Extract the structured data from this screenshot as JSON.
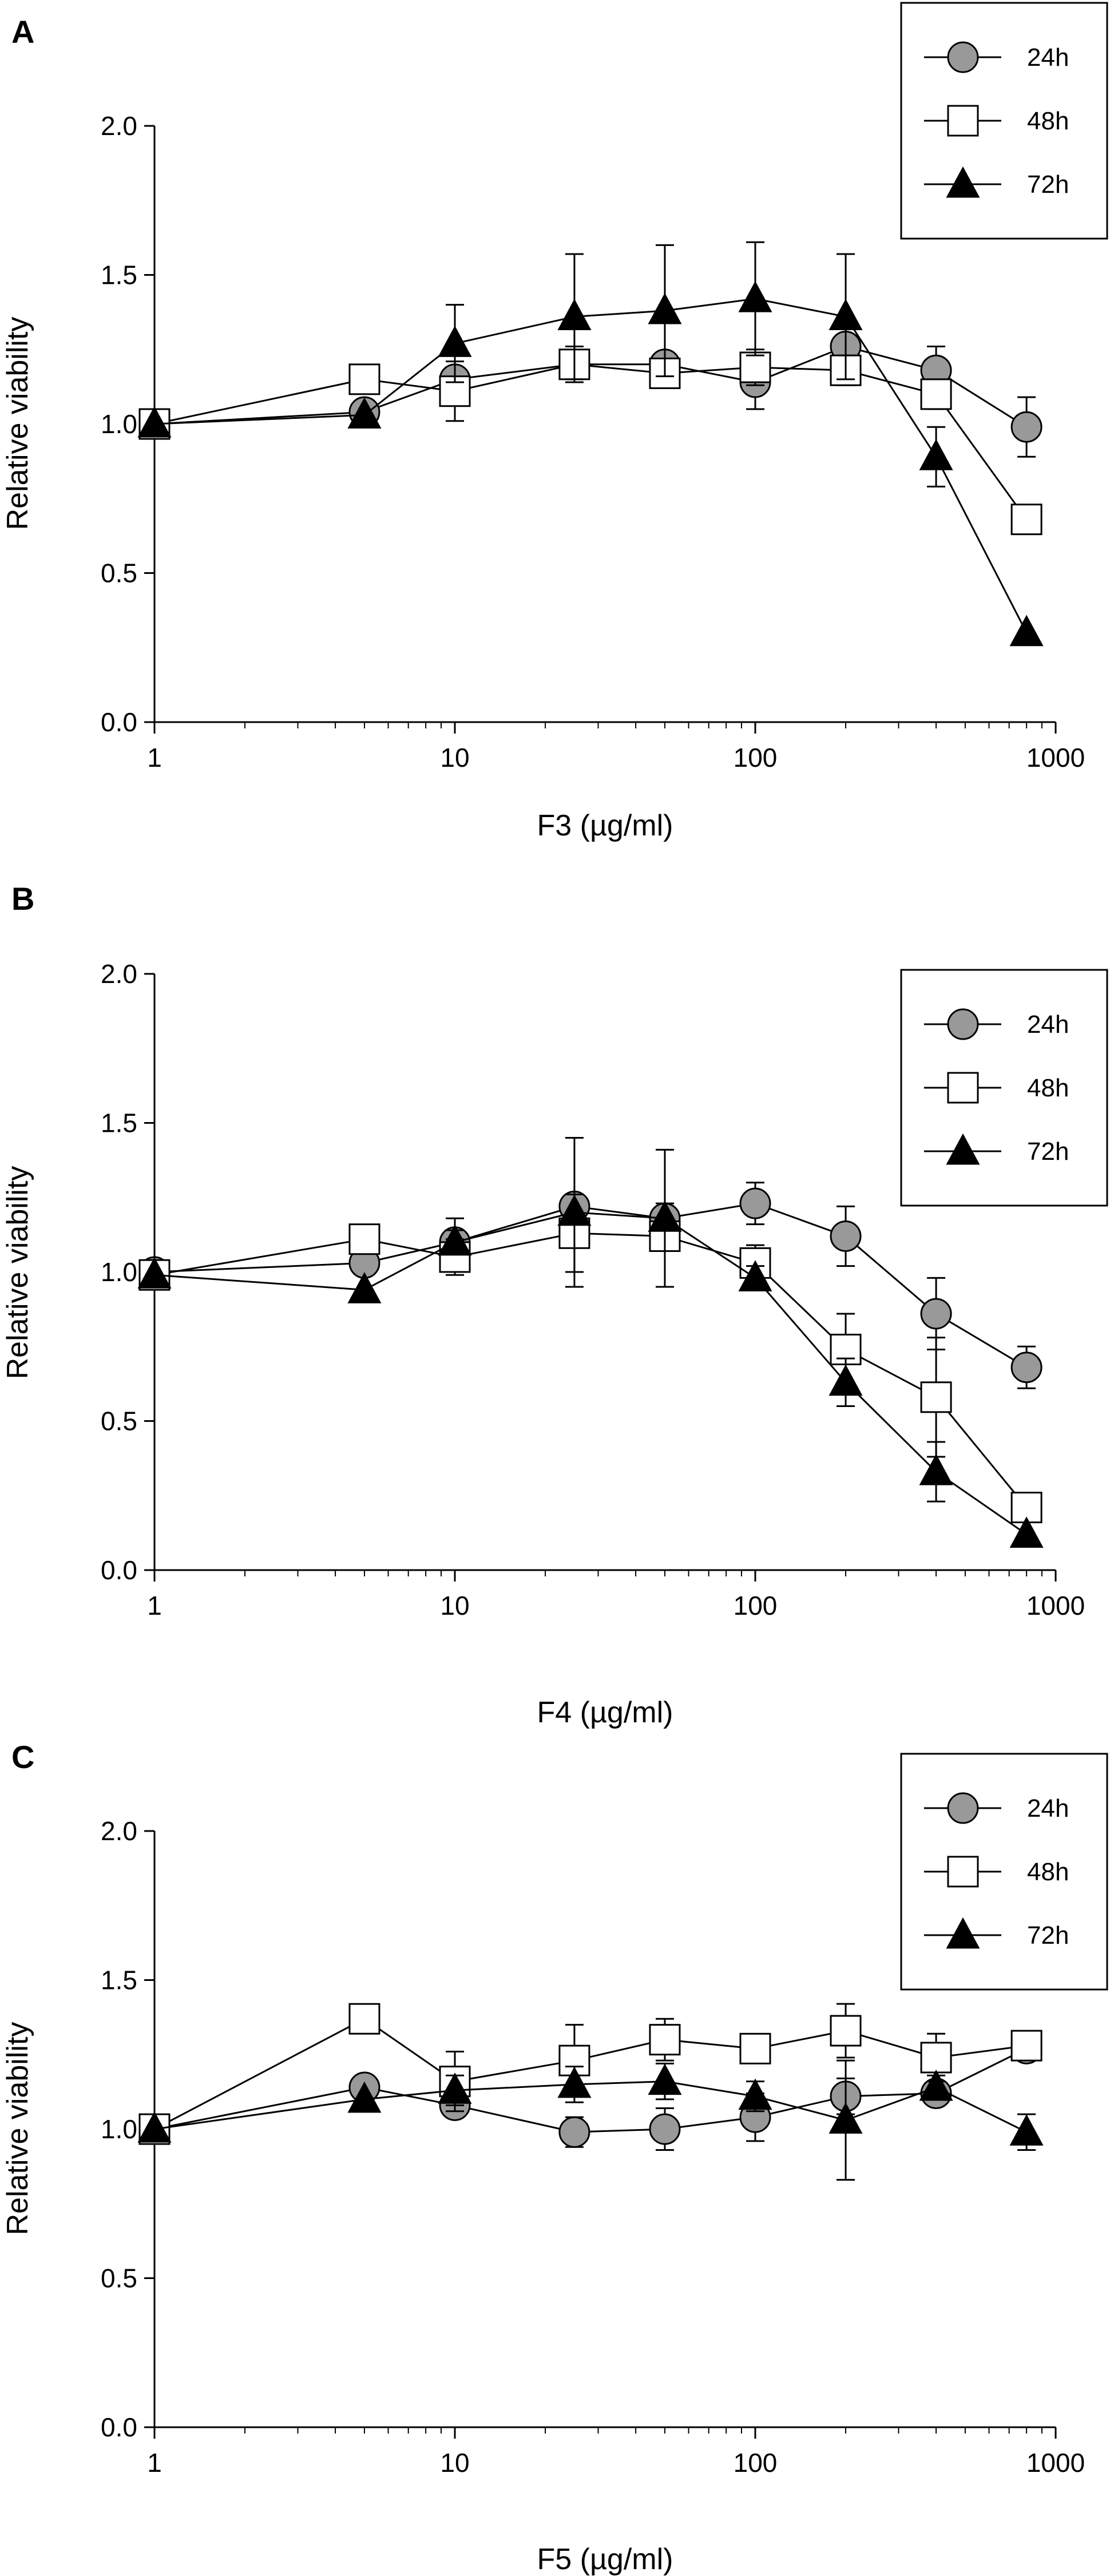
{
  "chart_data": [
    {
      "panel": "A",
      "type": "line",
      "xscale": "log",
      "xlim": [
        1,
        1000
      ],
      "xticks": [
        "1",
        "10",
        "100",
        "1000"
      ],
      "ylim": [
        0,
        2.0
      ],
      "yticks": [
        "0.0",
        "0.5",
        "1.0",
        "1.5",
        "2.0"
      ],
      "xlabel": "F3 (µg/ml)",
      "ylabel": "Relative viability",
      "legend_position": "top-right",
      "x": [
        1,
        5,
        10,
        25,
        50,
        100,
        200,
        400,
        800
      ],
      "series": [
        {
          "name": "24h",
          "marker": "circle-gray",
          "values": [
            1.0,
            1.04,
            1.15,
            1.2,
            1.2,
            1.14,
            1.26,
            1.18,
            0.99
          ],
          "errors": [
            0,
            0,
            0,
            0,
            0,
            0.09,
            0,
            0.08,
            0.1
          ]
        },
        {
          "name": "48h",
          "marker": "square-white",
          "values": [
            1.0,
            1.15,
            1.11,
            1.2,
            1.17,
            1.19,
            1.18,
            1.1,
            0.68
          ],
          "errors": [
            0,
            0,
            0.1,
            0.06,
            0.03,
            0.06,
            0.05,
            0.05,
            0
          ]
        },
        {
          "name": "72h",
          "marker": "triangle-black",
          "values": [
            1.0,
            1.03,
            1.27,
            1.36,
            1.38,
            1.42,
            1.36,
            0.89,
            0.3
          ],
          "errors": [
            0,
            0,
            0.13,
            0.21,
            0.22,
            0.19,
            0.21,
            0.1,
            0
          ]
        }
      ]
    },
    {
      "panel": "B",
      "type": "line",
      "xscale": "log",
      "xlim": [
        1,
        1000
      ],
      "xticks": [
        "1",
        "10",
        "100",
        "1000"
      ],
      "ylim": [
        0,
        2.0
      ],
      "yticks": [
        "0.0",
        "0.5",
        "1.0",
        "1.5",
        "2.0"
      ],
      "xlabel": "F4 (µg/ml)",
      "ylabel": "Relative viability",
      "legend_position": "top-right",
      "x": [
        1,
        5,
        10,
        25,
        50,
        100,
        200,
        400,
        800
      ],
      "series": [
        {
          "name": "24h",
          "marker": "circle-gray",
          "values": [
            1.0,
            1.03,
            1.1,
            1.22,
            1.18,
            1.23,
            1.12,
            0.86,
            0.68
          ],
          "errors": [
            0,
            0,
            0.08,
            0.03,
            0.05,
            0.07,
            0.1,
            0.12,
            0.07
          ]
        },
        {
          "name": "48h",
          "marker": "square-white",
          "values": [
            0.99,
            1.11,
            1.05,
            1.13,
            1.12,
            1.03,
            0.74,
            0.58,
            0.21
          ],
          "errors": [
            0,
            0,
            0.06,
            0.13,
            0.05,
            0.06,
            0.12,
            0.2,
            0
          ]
        },
        {
          "name": "72h",
          "marker": "triangle-black",
          "values": [
            0.99,
            0.94,
            1.1,
            1.2,
            1.18,
            0.98,
            0.63,
            0.33,
            0.12
          ],
          "errors": [
            0,
            0,
            0.04,
            0.25,
            0.23,
            0.04,
            0.08,
            0.1,
            0
          ]
        }
      ]
    },
    {
      "panel": "C",
      "type": "line",
      "xscale": "log",
      "xlim": [
        1,
        1000
      ],
      "xticks": [
        "1",
        "10",
        "100",
        "1000"
      ],
      "ylim": [
        0,
        2.0
      ],
      "yticks": [
        "0.0",
        "0.5",
        "1.0",
        "1.5",
        "2.0"
      ],
      "xlabel": "F5 (µg/ml)",
      "ylabel": "Relative viability",
      "legend_position": "top-right",
      "x": [
        1,
        5,
        10,
        25,
        50,
        100,
        200,
        400,
        800
      ],
      "series": [
        {
          "name": "24h",
          "marker": "circle-gray",
          "values": [
            1.0,
            1.14,
            1.08,
            0.99,
            1.0,
            1.04,
            1.11,
            1.12,
            1.27
          ],
          "errors": [
            0,
            0,
            0,
            0.05,
            0.07,
            0.08,
            0.06,
            0.02,
            0
          ]
        },
        {
          "name": "48h",
          "marker": "square-white",
          "values": [
            1.0,
            1.37,
            1.16,
            1.23,
            1.3,
            1.27,
            1.33,
            1.24,
            1.28
          ],
          "errors": [
            0,
            0,
            0.1,
            0.12,
            0.07,
            0.04,
            0.09,
            0.08,
            0
          ]
        },
        {
          "name": "72h",
          "marker": "triangle-black",
          "values": [
            1.0,
            1.1,
            1.13,
            1.15,
            1.16,
            1.11,
            1.03,
            1.14,
            0.99
          ],
          "errors": [
            0,
            0,
            0.05,
            0.06,
            0.06,
            0.05,
            0.2,
            0.04,
            0.06
          ]
        }
      ]
    }
  ]
}
